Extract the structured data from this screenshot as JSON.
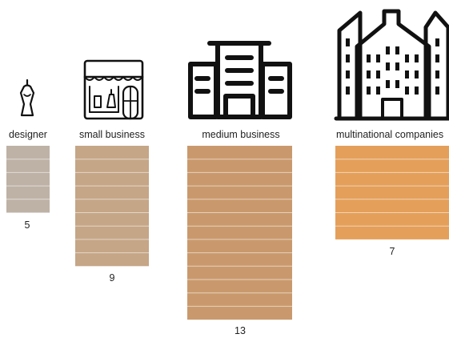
{
  "chart_data": {
    "type": "bar",
    "title": "",
    "xlabel": "",
    "ylabel": "",
    "categories": [
      "designer",
      "small business",
      "medium business",
      "multinational companies"
    ],
    "values": [
      5,
      9,
      13,
      7
    ],
    "icons": [
      "dress-form-icon",
      "storefront-icon",
      "office-building-icon",
      "skyscrapers-icon"
    ],
    "colors": [
      "#beb2a6",
      "#c5a687",
      "#c9996d",
      "#e49f5a"
    ],
    "unit_segment": 1,
    "grid": false,
    "legend": "none"
  }
}
